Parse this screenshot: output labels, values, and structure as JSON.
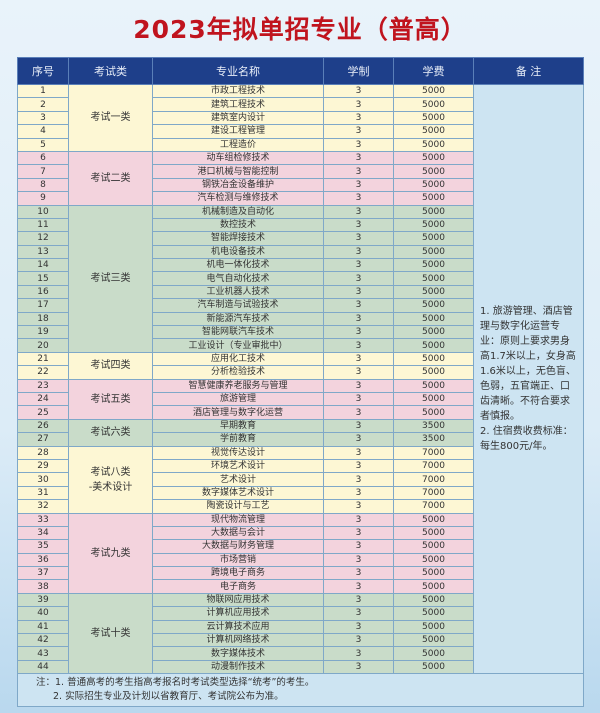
{
  "title": "2023年拟单招专业（普高）",
  "headers": [
    "序号",
    "考试类",
    "专业名称",
    "学制",
    "学费",
    "备 注"
  ],
  "colors": {
    "title": "#c0141e",
    "header": "#1e3f8a",
    "yellow": "#fdf7d4",
    "pink": "#f3d3dd",
    "green": "#c9dcc9",
    "remark": "#cde4f2"
  },
  "groups": [
    {
      "category": "考试一类",
      "color": "yellow",
      "rows": [
        [
          "1",
          "市政工程技术",
          "3",
          "5000"
        ],
        [
          "2",
          "建筑工程技术",
          "3",
          "5000"
        ],
        [
          "3",
          "建筑室内设计",
          "3",
          "5000"
        ],
        [
          "4",
          "建设工程管理",
          "3",
          "5000"
        ],
        [
          "5",
          "工程造价",
          "3",
          "5000"
        ]
      ]
    },
    {
      "category": "考试二类",
      "color": "pink",
      "rows": [
        [
          "6",
          "动车组检修技术",
          "3",
          "5000"
        ],
        [
          "7",
          "港口机械与智能控制",
          "3",
          "5000"
        ],
        [
          "8",
          "钢铁冶金设备维护",
          "3",
          "5000"
        ],
        [
          "9",
          "汽车检测与维修技术",
          "3",
          "5000"
        ]
      ]
    },
    {
      "category": "考试三类",
      "color": "green",
      "rows": [
        [
          "10",
          "机械制造及自动化",
          "3",
          "5000"
        ],
        [
          "11",
          "数控技术",
          "3",
          "5000"
        ],
        [
          "12",
          "智能焊接技术",
          "3",
          "5000"
        ],
        [
          "13",
          "机电设备技术",
          "3",
          "5000"
        ],
        [
          "14",
          "机电一体化技术",
          "3",
          "5000"
        ],
        [
          "15",
          "电气自动化技术",
          "3",
          "5000"
        ],
        [
          "16",
          "工业机器人技术",
          "3",
          "5000"
        ],
        [
          "17",
          "汽车制造与试验技术",
          "3",
          "5000"
        ],
        [
          "18",
          "新能源汽车技术",
          "3",
          "5000"
        ],
        [
          "19",
          "智能网联汽车技术",
          "3",
          "5000"
        ],
        [
          "20",
          "工业设计（专业审批中）",
          "3",
          "5000"
        ]
      ]
    },
    {
      "category": "考试四类",
      "color": "yellow",
      "rows": [
        [
          "21",
          "应用化工技术",
          "3",
          "5000"
        ],
        [
          "22",
          "分析检验技术",
          "3",
          "5000"
        ]
      ]
    },
    {
      "category": "考试五类",
      "color": "pink",
      "rows": [
        [
          "23",
          "智慧健康养老服务与管理",
          "3",
          "5000"
        ],
        [
          "24",
          "旅游管理",
          "3",
          "5000"
        ],
        [
          "25",
          "酒店管理与数字化运营",
          "3",
          "5000"
        ]
      ]
    },
    {
      "category": "考试六类",
      "color": "green",
      "rows": [
        [
          "26",
          "早期教育",
          "3",
          "3500"
        ],
        [
          "27",
          "学前教育",
          "3",
          "3500"
        ]
      ]
    },
    {
      "category": "考试八类\n-美术设计",
      "color": "yellow",
      "rows": [
        [
          "28",
          "视觉传达设计",
          "3",
          "7000"
        ],
        [
          "29",
          "环境艺术设计",
          "3",
          "7000"
        ],
        [
          "30",
          "艺术设计",
          "3",
          "7000"
        ],
        [
          "31",
          "数字媒体艺术设计",
          "3",
          "7000"
        ],
        [
          "32",
          "陶瓷设计与工艺",
          "3",
          "7000"
        ]
      ]
    },
    {
      "category": "考试九类",
      "color": "pink",
      "rows": [
        [
          "33",
          "现代物流管理",
          "3",
          "5000"
        ],
        [
          "34",
          "大数据与会计",
          "3",
          "5000"
        ],
        [
          "35",
          "大数据与财务管理",
          "3",
          "5000"
        ],
        [
          "36",
          "市场营销",
          "3",
          "5000"
        ],
        [
          "37",
          "跨境电子商务",
          "3",
          "5000"
        ],
        [
          "38",
          "电子商务",
          "3",
          "5000"
        ]
      ]
    },
    {
      "category": "考试十类",
      "color": "green",
      "rows": [
        [
          "39",
          "物联网应用技术",
          "3",
          "5000"
        ],
        [
          "40",
          "计算机应用技术",
          "3",
          "5000"
        ],
        [
          "41",
          "云计算技术应用",
          "3",
          "5000"
        ],
        [
          "42",
          "计算机网络技术",
          "3",
          "5000"
        ],
        [
          "43",
          "数字媒体技术",
          "3",
          "5000"
        ],
        [
          "44",
          "动漫制作技术",
          "3",
          "5000"
        ]
      ]
    }
  ],
  "remarks": [
    "1. 旅游管理、酒店管理与数字化运营专业：原则上要求男身高1.7米以上，女身高1.6米以上，无色盲、色弱，五官端正、口齿清晰。不符合要求者慎报。",
    "2. 住宿费收费标准：每生800元/年。"
  ],
  "notes": [
    "注：1. 普通高考的考生指高考报名时考试类型选择“统考”的考生。",
    "2. 实际招生专业及计划以省教育厅、考试院公布为准。"
  ]
}
